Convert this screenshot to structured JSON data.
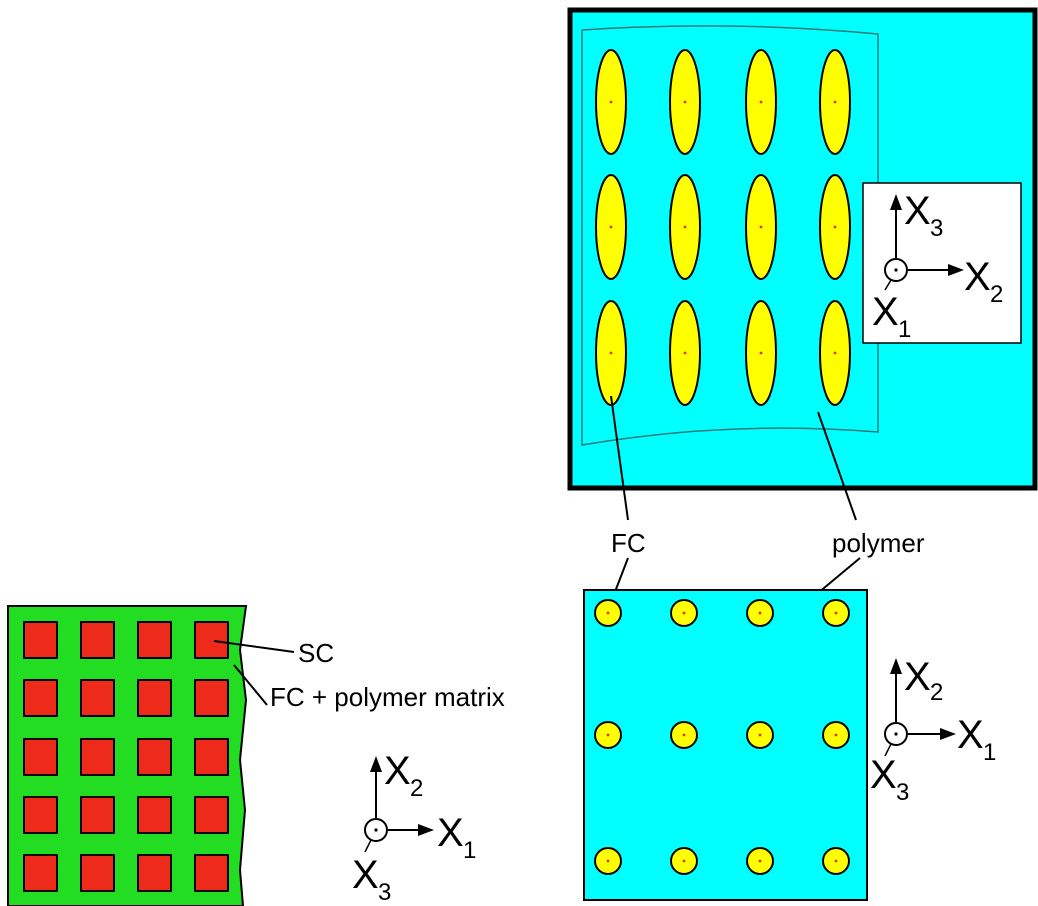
{
  "colors": {
    "polymer": "#00ffff",
    "fiber": "#ffff00",
    "matrix": "#22dd22",
    "sc": "#ee2a1a",
    "outline": "#000000"
  },
  "labels": {
    "fc": "FC",
    "polymer": "polymer",
    "sc": "SC",
    "fc_polymer_matrix": "FC + polymer matrix"
  },
  "axes_top": {
    "up": "X",
    "up_sub": "3",
    "right": "X",
    "right_sub": "2",
    "out": "X",
    "out_sub": "1"
  },
  "axes_bottom_right": {
    "up": "X",
    "up_sub": "2",
    "right": "X",
    "right_sub": "1",
    "out": "X",
    "out_sub": "3"
  },
  "axes_bottom_left": {
    "up": "X",
    "up_sub": "2",
    "right": "X",
    "right_sub": "1",
    "out": "X",
    "out_sub": "3"
  }
}
